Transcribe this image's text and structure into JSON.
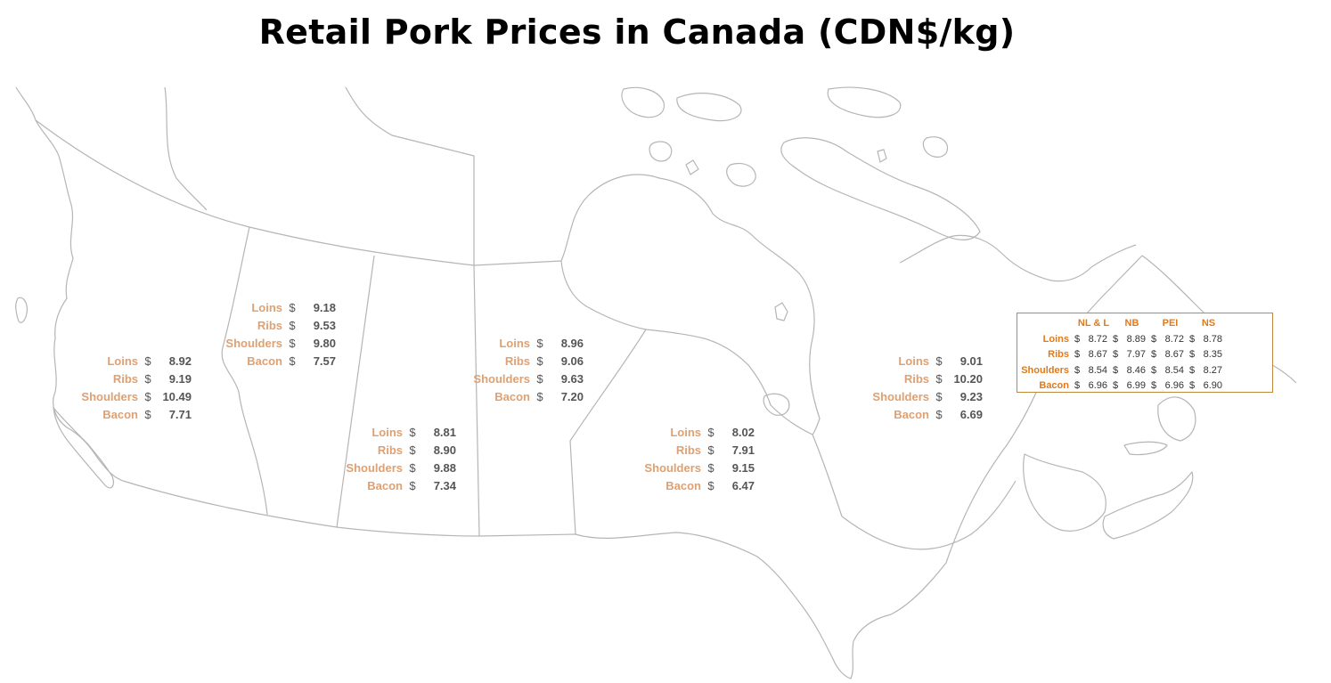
{
  "title": "Retail Pork Prices in Canada (CDN$/kg)",
  "colors": {
    "cut_label": "#e0a070",
    "value": "#555555",
    "atlantic_accent": "#e07a1a",
    "atlantic_border": "#c08a3e",
    "boundary": "#b5b5b5"
  },
  "currency_symbol": "$",
  "regions": [
    {
      "id": "bc",
      "items": [
        {
          "cut": "Loins",
          "price": "8.92"
        },
        {
          "cut": "Ribs",
          "price": "9.19"
        },
        {
          "cut": "Shoulders",
          "price": "10.49"
        },
        {
          "cut": "Bacon",
          "price": "7.71"
        }
      ]
    },
    {
      "id": "ab",
      "items": [
        {
          "cut": "Loins",
          "price": "9.18"
        },
        {
          "cut": "Ribs",
          "price": "9.53"
        },
        {
          "cut": "Shoulders",
          "price": "9.80"
        },
        {
          "cut": "Bacon",
          "price": "7.57"
        }
      ]
    },
    {
      "id": "sk",
      "items": [
        {
          "cut": "Loins",
          "price": "8.81"
        },
        {
          "cut": "Ribs",
          "price": "8.90"
        },
        {
          "cut": "Shoulders",
          "price": "9.88"
        },
        {
          "cut": "Bacon",
          "price": "7.34"
        }
      ]
    },
    {
      "id": "mb",
      "items": [
        {
          "cut": "Loins",
          "price": "8.96"
        },
        {
          "cut": "Ribs",
          "price": "9.06"
        },
        {
          "cut": "Shoulders",
          "price": "9.63"
        },
        {
          "cut": "Bacon",
          "price": "7.20"
        }
      ]
    },
    {
      "id": "on",
      "items": [
        {
          "cut": "Loins",
          "price": "8.02"
        },
        {
          "cut": "Ribs",
          "price": "7.91"
        },
        {
          "cut": "Shoulders",
          "price": "9.15"
        },
        {
          "cut": "Bacon",
          "price": "6.47"
        }
      ]
    },
    {
      "id": "qc",
      "items": [
        {
          "cut": "Loins",
          "price": "9.01"
        },
        {
          "cut": "Ribs",
          "price": "10.20"
        },
        {
          "cut": "Shoulders",
          "price": "9.23"
        },
        {
          "cut": "Bacon",
          "price": "6.69"
        }
      ]
    }
  ],
  "atlantic": {
    "headers": [
      "NL & L",
      "NB",
      "PEI",
      "NS"
    ],
    "rows": [
      {
        "cut": "Loins",
        "prices": [
          "8.72",
          "8.89",
          "8.72",
          "8.78"
        ]
      },
      {
        "cut": "Ribs",
        "prices": [
          "8.67",
          "7.97",
          "8.67",
          "8.35"
        ]
      },
      {
        "cut": "Shoulders",
        "prices": [
          "8.54",
          "8.46",
          "8.54",
          "8.27"
        ]
      },
      {
        "cut": "Bacon",
        "prices": [
          "6.96",
          "6.99",
          "6.96",
          "6.90"
        ]
      }
    ]
  }
}
